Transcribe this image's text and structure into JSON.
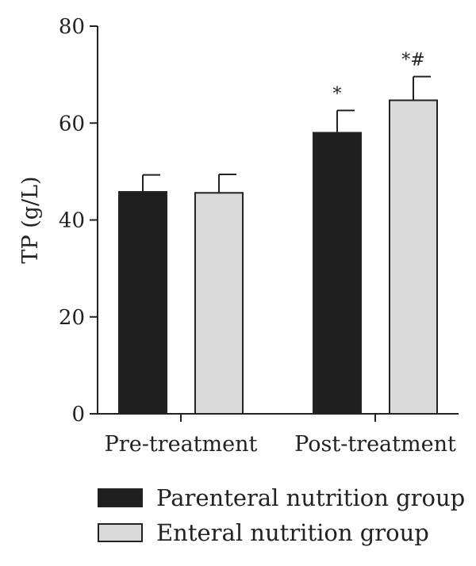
{
  "chart_data": {
    "type": "bar",
    "title": "",
    "xlabel": "",
    "ylabel": "TP (g/L)",
    "ylim": [
      0,
      80
    ],
    "yticks": [
      0,
      20,
      40,
      60,
      80
    ],
    "grid": false,
    "legend_position": "bottom",
    "categories": [
      "Pre-treatment",
      "Post-treatment"
    ],
    "series": [
      {
        "name": "Parenteral nutrition group",
        "color": "#1f1f1f",
        "values": [
          45.8,
          58.0
        ],
        "errors": [
          3.5,
          4.6
        ],
        "annotations": [
          "",
          "*"
        ]
      },
      {
        "name": "Enteral nutrition group",
        "color": "#dadada",
        "values": [
          45.6,
          64.7
        ],
        "errors": [
          3.8,
          4.9
        ],
        "annotations": [
          "",
          "*#"
        ]
      }
    ]
  }
}
